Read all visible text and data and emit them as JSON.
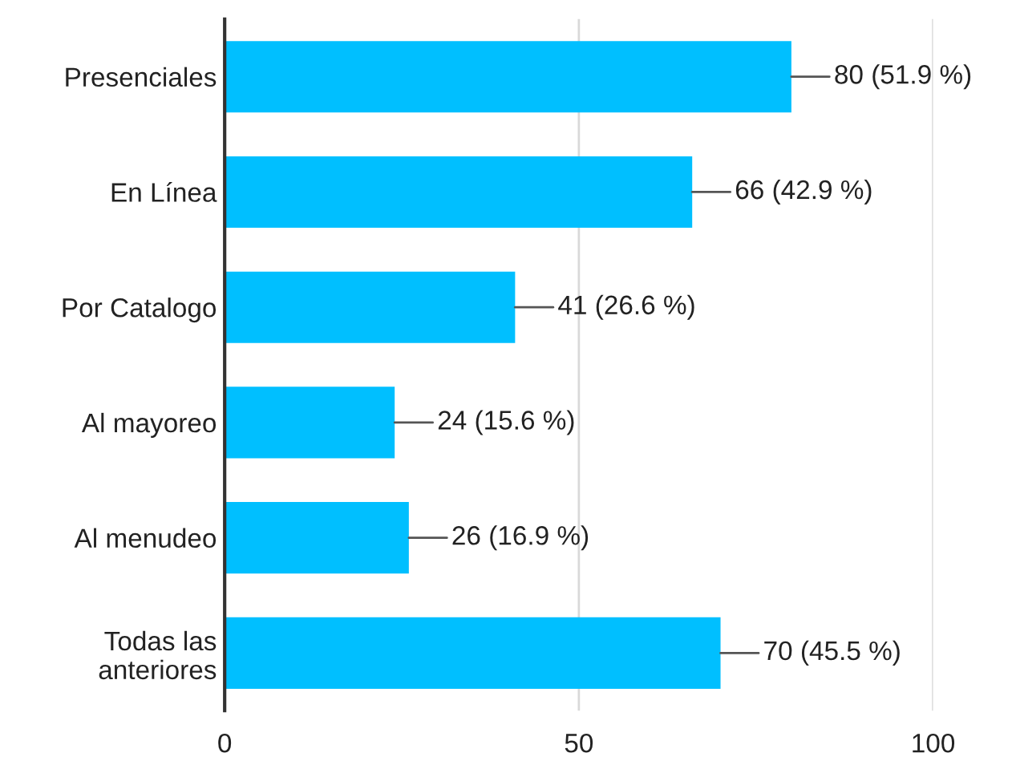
{
  "chart_data": {
    "type": "bar",
    "orientation": "horizontal",
    "categories": [
      "Presenciales",
      "En Línea",
      "Por Catalogo",
      "Al mayoreo",
      "Al menudeo",
      "Todas las\nanteriores"
    ],
    "values": [
      80,
      66,
      41,
      24,
      26,
      70
    ],
    "value_labels": [
      "80 (51.9 %)",
      "66 (42.9 %)",
      "41 (26.6 %)",
      "24 (15.6 %)",
      "26 (16.9 %)",
      "70 (45.5 %)"
    ],
    "color": "#00bfff",
    "xlim": [
      0,
      100
    ],
    "xticks": [
      0,
      50,
      100
    ],
    "grid": "x",
    "legend": false
  }
}
